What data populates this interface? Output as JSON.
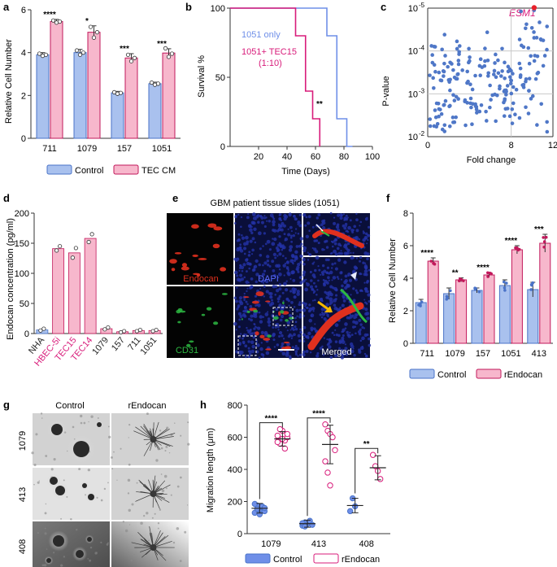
{
  "colors": {
    "blue_fill": "#a9c1ee",
    "blue_edge": "#4a73c8",
    "pink_fill": "#f7b7cc",
    "pink_edge": "#c2185b",
    "magenta": "#d81b7a",
    "line_blue": "#6f8fe8",
    "scatter_blue": "#4f77c7",
    "red": "#e8212b",
    "red_stain": "#e0301e",
    "green_stain": "#2db842",
    "blue_stain": "#2332a8",
    "arrow_yellow": "#f5b800"
  },
  "panel_letters": [
    "a",
    "b",
    "c",
    "d",
    "e",
    "f",
    "g",
    "h"
  ],
  "chart_data": [
    {
      "panel": "a",
      "type": "bar",
      "categories": [
        "711",
        "1079",
        "157",
        "1051"
      ],
      "series": [
        {
          "name": "Control",
          "values": [
            3.9,
            4.0,
            2.12,
            2.55
          ]
        },
        {
          "name": "TEC CM",
          "values": [
            5.45,
            4.95,
            3.75,
            3.98
          ]
        }
      ],
      "errors": [
        [
          0.1,
          0.15,
          0.07,
          0.07
        ],
        [
          0.1,
          0.3,
          0.2,
          0.2
        ]
      ],
      "points": [
        [
          [
            3.95,
            3.85,
            3.9
          ],
          [
            4.1,
            3.9,
            4.0
          ],
          [
            2.15,
            2.08,
            2.12
          ],
          [
            2.6,
            2.5,
            2.55
          ]
        ],
        [
          [
            5.5,
            5.4,
            5.45
          ],
          [
            5.2,
            4.7,
            4.95
          ],
          [
            3.9,
            3.6,
            3.75
          ],
          [
            4.2,
            3.8,
            3.95
          ]
        ]
      ],
      "significance": [
        "****",
        "*",
        "***",
        "***"
      ],
      "ylabel": "Relative Cell Number",
      "yticks": [
        "0",
        "2",
        "4",
        "6"
      ],
      "ylim": [
        0,
        6
      ]
    },
    {
      "panel": "b",
      "type": "line",
      "series": [
        {
          "name": "1051 only",
          "x": [
            0,
            63,
            68,
            68,
            75,
            75,
            82,
            82,
            86
          ],
          "y": [
            100,
            100,
            100,
            80,
            80,
            20,
            20,
            0,
            0
          ]
        },
        {
          "name": "1051+ TEC15\n(1:10)",
          "x": [
            0,
            46,
            46,
            53,
            53,
            58,
            58,
            63,
            63
          ],
          "y": [
            100,
            100,
            80,
            80,
            40,
            40,
            20,
            20,
            0
          ]
        }
      ],
      "legend_1": "1051 only",
      "legend_2a": "1051+ TEC15",
      "legend_2b": "(1:10)",
      "significance": "**",
      "xlabel": "Time (Days)",
      "ylabel": "Survival %",
      "xticks": [
        "20",
        "40",
        "60",
        "80",
        "100"
      ],
      "yticks": [
        "0",
        "50",
        "100"
      ],
      "xlim": [
        0,
        100
      ],
      "ylim": [
        0,
        100
      ]
    },
    {
      "panel": "c",
      "type": "scatter",
      "xlabel": "Fold change",
      "ylabel": "P-value",
      "xticks": [
        "0",
        "8",
        "12"
      ],
      "xlim": [
        0,
        12
      ],
      "yticks": [
        "10",
        "10",
        "10",
        "10"
      ],
      "ytick_exp": [
        "-5",
        "-4",
        "-3",
        "-2"
      ],
      "yscale": "log",
      "highlight_label": "ESM1",
      "highlight_point": {
        "x": 10.2,
        "y_log": -5.2
      },
      "point_count": 210
    },
    {
      "panel": "d",
      "type": "bar",
      "categories": [
        "NHA",
        "HBEC-5i",
        "TEC15",
        "TEC14",
        "1079",
        "157",
        "711",
        "1051"
      ],
      "values": [
        6,
        141,
        134,
        158,
        8,
        3,
        5,
        5
      ],
      "points": [
        [
          5,
          8
        ],
        [
          138,
          145
        ],
        [
          126,
          142
        ],
        [
          152,
          165
        ],
        [
          7,
          10
        ],
        [
          2,
          4
        ],
        [
          4,
          6
        ],
        [
          4,
          6
        ]
      ],
      "ylabel": "Endocan concentration (pg/ml)",
      "yticks": [
        "0",
        "50",
        "100",
        "150",
        "200"
      ],
      "ylim": [
        0,
        200
      ]
    },
    {
      "panel": "f",
      "type": "bar",
      "categories": [
        "711",
        "1079",
        "157",
        "1051",
        "413"
      ],
      "series": [
        {
          "name": "Control",
          "values": [
            2.5,
            3.05,
            3.25,
            3.55,
            3.3
          ]
        },
        {
          "name": "rEndocan",
          "values": [
            5.05,
            3.9,
            4.2,
            5.75,
            6.15
          ]
        }
      ],
      "errors": [
        [
          0.2,
          0.35,
          0.15,
          0.35,
          0.45
        ],
        [
          0.2,
          0.12,
          0.15,
          0.25,
          0.55
        ]
      ],
      "significance": [
        "****",
        "**",
        "****",
        "****",
        "***"
      ],
      "ylabel": "Relative Cell Number",
      "yticks": [
        "0",
        "2",
        "4",
        "6",
        "8"
      ],
      "ylim": [
        0,
        8
      ]
    },
    {
      "panel": "h",
      "type": "scatter",
      "categories": [
        "1079",
        "413",
        "408"
      ],
      "series": [
        {
          "name": "Control",
          "means": [
            158,
            62,
            175
          ],
          "sd": [
            30,
            22,
            45
          ],
          "points": [
            [
              130,
              175,
              150,
              165,
              140,
              185,
              155,
              120,
              170,
              160
            ],
            [
              50,
              70,
              60,
              80,
              55,
              65,
              45
            ],
            [
              140,
              220,
              170
            ]
          ]
        },
        {
          "name": "rEndocan",
          "means": [
            590,
            555,
            410
          ],
          "sd": [
            45,
            120,
            75
          ],
          "points": [
            [
              610,
              560,
              640,
              580,
              600,
              570,
              650,
              590,
              530,
              620
            ],
            [
              680,
              640,
              620,
              600,
              520,
              450,
              380,
              300
            ],
            [
              490,
              420,
              390,
              340
            ]
          ]
        }
      ],
      "significance": [
        "****",
        "****",
        "**"
      ],
      "ylabel": "Migration length (μm)",
      "yticks": [
        "0",
        "200",
        "400",
        "600",
        "800"
      ],
      "ylim": [
        0,
        800
      ]
    }
  ],
  "panel_e": {
    "title": "GBM patient tissue slides (1051)",
    "labels": {
      "endocan": "Endocan",
      "dapi": "DAPI",
      "cd31": "CD31",
      "merged": "Merged"
    }
  },
  "panel_g": {
    "col_headers": [
      "Control",
      "rEndocan"
    ],
    "row_labels": [
      "1079",
      "413",
      "408"
    ]
  }
}
